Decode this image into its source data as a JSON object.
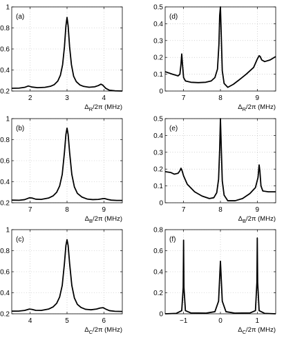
{
  "chart_data": [
    {
      "id": "a",
      "type": "line",
      "label": "(a)",
      "xlabel_main": "Δ",
      "xlabel_sub": "R",
      "xlabel_rest": "/2π (MHz)",
      "xlim": [
        1.5,
        4.5
      ],
      "ylim": [
        0.2,
        1.0
      ],
      "xticks": [
        "2",
        "3",
        "4"
      ],
      "yticks": [
        "0.2",
        "0.4",
        "0.6",
        "0.8",
        "1"
      ],
      "xtick_values": [
        2,
        3,
        4
      ],
      "ytick_values": [
        0.2,
        0.4,
        0.6,
        0.8,
        1.0
      ],
      "series": [
        {
          "x": [
            1.5,
            1.7,
            1.85,
            1.95,
            2.05,
            2.2,
            2.4,
            2.55,
            2.65,
            2.75,
            2.82,
            2.88,
            2.93,
            2.97,
            3.0,
            3.03,
            3.07,
            3.12,
            3.18,
            3.25,
            3.35,
            3.45,
            3.6,
            3.75,
            3.85,
            3.92,
            3.97,
            4.05,
            4.15,
            4.3,
            4.5
          ],
          "y": [
            0.226,
            0.228,
            0.235,
            0.248,
            0.238,
            0.232,
            0.235,
            0.245,
            0.26,
            0.295,
            0.35,
            0.45,
            0.62,
            0.82,
            0.9,
            0.82,
            0.62,
            0.45,
            0.34,
            0.29,
            0.258,
            0.244,
            0.236,
            0.24,
            0.252,
            0.265,
            0.256,
            0.226,
            0.208,
            0.202,
            0.2
          ]
        }
      ]
    },
    {
      "id": "d",
      "type": "line",
      "label": "(d)",
      "xlabel_main": "Δ",
      "xlabel_sub": "R",
      "xlabel_rest": "/2π (MHz)",
      "xlim": [
        6.5,
        9.5
      ],
      "ylim": [
        0,
        0.5
      ],
      "xticks": [
        "7",
        "8",
        "9"
      ],
      "yticks": [
        "0",
        "0.1",
        "0.2",
        "0.3",
        "0.4",
        "0.5"
      ],
      "xtick_values": [
        7,
        8,
        9
      ],
      "ytick_values": [
        0,
        0.1,
        0.2,
        0.3,
        0.4,
        0.5
      ],
      "series": [
        {
          "x": [
            6.5,
            6.7,
            6.85,
            6.9,
            6.93,
            6.95,
            6.97,
            7.0,
            7.05,
            7.2,
            7.4,
            7.6,
            7.75,
            7.85,
            7.92,
            7.96,
            7.98,
            8.0,
            8.02,
            8.05,
            8.1,
            8.2,
            8.35,
            8.5,
            8.7,
            8.9,
            9.0,
            9.05,
            9.08,
            9.12,
            9.2,
            9.35,
            9.5
          ],
          "y": [
            0.115,
            0.1,
            0.09,
            0.1,
            0.16,
            0.22,
            0.16,
            0.08,
            0.06,
            0.052,
            0.05,
            0.052,
            0.06,
            0.08,
            0.13,
            0.28,
            0.45,
            0.5,
            0.35,
            0.12,
            0.045,
            0.022,
            0.04,
            0.065,
            0.1,
            0.14,
            0.19,
            0.21,
            0.205,
            0.185,
            0.175,
            0.185,
            0.205
          ]
        }
      ]
    },
    {
      "id": "b",
      "type": "line",
      "label": "(b)",
      "xlabel_main": "Δ",
      "xlabel_sub": "B",
      "xlabel_rest": "/2π (MHz)",
      "xlim": [
        6.5,
        9.5
      ],
      "ylim": [
        0.2,
        1.0
      ],
      "xticks": [
        "7",
        "8",
        "9"
      ],
      "yticks": [
        "0.2",
        "0.4",
        "0.6",
        "0.8",
        "1"
      ],
      "xtick_values": [
        7,
        8,
        9
      ],
      "ytick_values": [
        0.2,
        0.4,
        0.6,
        0.8,
        1.0
      ],
      "series": [
        {
          "x": [
            6.5,
            6.7,
            6.85,
            6.98,
            7.05,
            7.15,
            7.3,
            7.5,
            7.62,
            7.72,
            7.8,
            7.87,
            7.93,
            7.97,
            8.0,
            8.03,
            8.07,
            8.13,
            8.2,
            8.28,
            8.4,
            8.55,
            8.7,
            8.85,
            8.95,
            9.02,
            9.1,
            9.2,
            9.35,
            9.5
          ],
          "y": [
            0.225,
            0.224,
            0.23,
            0.247,
            0.245,
            0.234,
            0.232,
            0.245,
            0.265,
            0.3,
            0.36,
            0.47,
            0.68,
            0.85,
            0.91,
            0.85,
            0.68,
            0.47,
            0.35,
            0.29,
            0.255,
            0.235,
            0.23,
            0.232,
            0.238,
            0.24,
            0.232,
            0.225,
            0.222,
            0.222
          ]
        }
      ]
    },
    {
      "id": "e",
      "type": "line",
      "label": "(e)",
      "xlabel_main": "Δ",
      "xlabel_sub": "B",
      "xlabel_rest": "/2π (MHz)",
      "xlim": [
        6.5,
        9.5
      ],
      "ylim": [
        0,
        0.5
      ],
      "xticks": [
        "7",
        "8",
        "9"
      ],
      "yticks": [
        "0",
        "0.1",
        "0.2",
        "0.3",
        "0.4",
        "0.5"
      ],
      "xtick_values": [
        7,
        8,
        9
      ],
      "ytick_values": [
        0,
        0.1,
        0.2,
        0.3,
        0.4,
        0.5
      ],
      "series": [
        {
          "x": [
            6.5,
            6.65,
            6.75,
            6.85,
            6.9,
            6.93,
            6.96,
            7.0,
            7.1,
            7.3,
            7.5,
            7.7,
            7.82,
            7.9,
            7.95,
            7.98,
            8.0,
            8.02,
            8.05,
            8.1,
            8.2,
            8.4,
            8.6,
            8.8,
            8.95,
            9.02,
            9.05,
            9.07,
            9.1,
            9.15,
            9.3,
            9.5
          ],
          "y": [
            0.185,
            0.18,
            0.17,
            0.175,
            0.19,
            0.205,
            0.19,
            0.16,
            0.11,
            0.065,
            0.04,
            0.025,
            0.03,
            0.06,
            0.14,
            0.32,
            0.5,
            0.35,
            0.13,
            0.045,
            0.012,
            0.012,
            0.025,
            0.055,
            0.09,
            0.15,
            0.225,
            0.19,
            0.1,
            0.07,
            0.065,
            0.065
          ]
        }
      ]
    },
    {
      "id": "c",
      "type": "line",
      "label": "(c)",
      "xlabel_main": "Δ",
      "xlabel_sub": "C",
      "xlabel_rest": "/2π (MHz)",
      "xlim": [
        3.5,
        6.5
      ],
      "ylim": [
        0.2,
        1.0
      ],
      "xticks": [
        "4",
        "5",
        "6"
      ],
      "yticks": [
        "0.2",
        "0.4",
        "0.6",
        "0.8",
        "1"
      ],
      "xtick_values": [
        4,
        5,
        6
      ],
      "ytick_values": [
        0.2,
        0.4,
        0.6,
        0.8,
        1.0
      ],
      "series": [
        {
          "x": [
            3.5,
            3.7,
            3.85,
            3.98,
            4.05,
            4.15,
            4.3,
            4.5,
            4.62,
            4.72,
            4.8,
            4.87,
            4.93,
            4.97,
            5.0,
            5.03,
            5.07,
            5.13,
            5.2,
            5.28,
            5.38,
            5.5,
            5.65,
            5.8,
            5.9,
            5.98,
            6.05,
            6.15,
            6.3,
            6.5
          ],
          "y": [
            0.225,
            0.226,
            0.232,
            0.245,
            0.242,
            0.233,
            0.232,
            0.245,
            0.265,
            0.3,
            0.36,
            0.47,
            0.68,
            0.85,
            0.905,
            0.85,
            0.68,
            0.47,
            0.35,
            0.29,
            0.26,
            0.243,
            0.238,
            0.245,
            0.255,
            0.258,
            0.245,
            0.23,
            0.224,
            0.222
          ]
        }
      ]
    },
    {
      "id": "f",
      "type": "line",
      "label": "(f)",
      "xlabel_main": "Δ",
      "xlabel_sub": "C",
      "xlabel_rest": "/2π (MHz)",
      "xlim": [
        -1.5,
        1.5
      ],
      "ylim": [
        0,
        0.8
      ],
      "xticks": [
        "−1",
        "0",
        "1"
      ],
      "yticks": [
        "0",
        "0.2",
        "0.4",
        "0.6",
        "0.8"
      ],
      "xtick_values": [
        -1,
        0,
        1
      ],
      "ytick_values": [
        0,
        0.2,
        0.4,
        0.6,
        0.8
      ],
      "series": [
        {
          "x": [
            -1.5,
            -1.2,
            -1.05,
            -1.01,
            -1.0,
            -0.99,
            -0.95,
            -0.8,
            -0.4,
            -0.15,
            -0.05,
            -0.02,
            0.0,
            0.02,
            0.05,
            0.15,
            0.4,
            0.8,
            0.95,
            0.99,
            1.0,
            1.01,
            1.05,
            1.2,
            1.5
          ],
          "y": [
            0.0,
            0.004,
            0.03,
            0.25,
            0.7,
            0.25,
            0.03,
            0.008,
            0.006,
            0.02,
            0.12,
            0.35,
            0.5,
            0.35,
            0.12,
            0.02,
            0.006,
            0.008,
            0.03,
            0.3,
            0.72,
            0.3,
            0.03,
            0.004,
            0.0
          ]
        }
      ]
    }
  ]
}
